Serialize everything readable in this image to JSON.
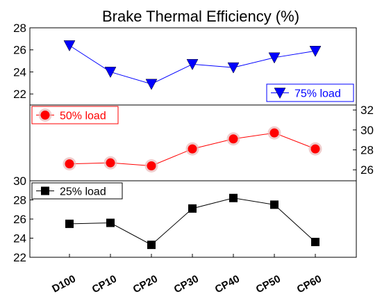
{
  "chart_data": {
    "type": "line",
    "title": "Brake Thermal Efficiency (%)",
    "categories": [
      "D100",
      "CP10",
      "CP20",
      "CP30",
      "CP40",
      "CP50",
      "CP60"
    ],
    "panels": [
      {
        "legend": "75% load",
        "color": "#0000ff",
        "marker": "triangle-down",
        "y_axis_side": "left",
        "ylim": [
          21,
          28
        ],
        "yticks": [
          22,
          24,
          26,
          28
        ],
        "values": [
          26.4,
          24.0,
          22.9,
          24.7,
          24.4,
          25.3,
          25.9
        ]
      },
      {
        "legend": "50% load",
        "color": "#ff0000",
        "marker": "circle",
        "y_axis_side": "right",
        "ylim": [
          24.9,
          32.5
        ],
        "yticks": [
          26,
          28,
          30,
          32
        ],
        "values": [
          26.6,
          26.7,
          26.4,
          28.1,
          29.1,
          29.7,
          28.1
        ]
      },
      {
        "legend": "25%  load",
        "color": "#000000",
        "marker": "square",
        "y_axis_side": "left",
        "ylim": [
          22,
          30
        ],
        "yticks": [
          22,
          24,
          26,
          28,
          30
        ],
        "values": [
          25.5,
          25.6,
          23.3,
          27.1,
          28.2,
          27.5,
          23.6
        ]
      }
    ]
  }
}
